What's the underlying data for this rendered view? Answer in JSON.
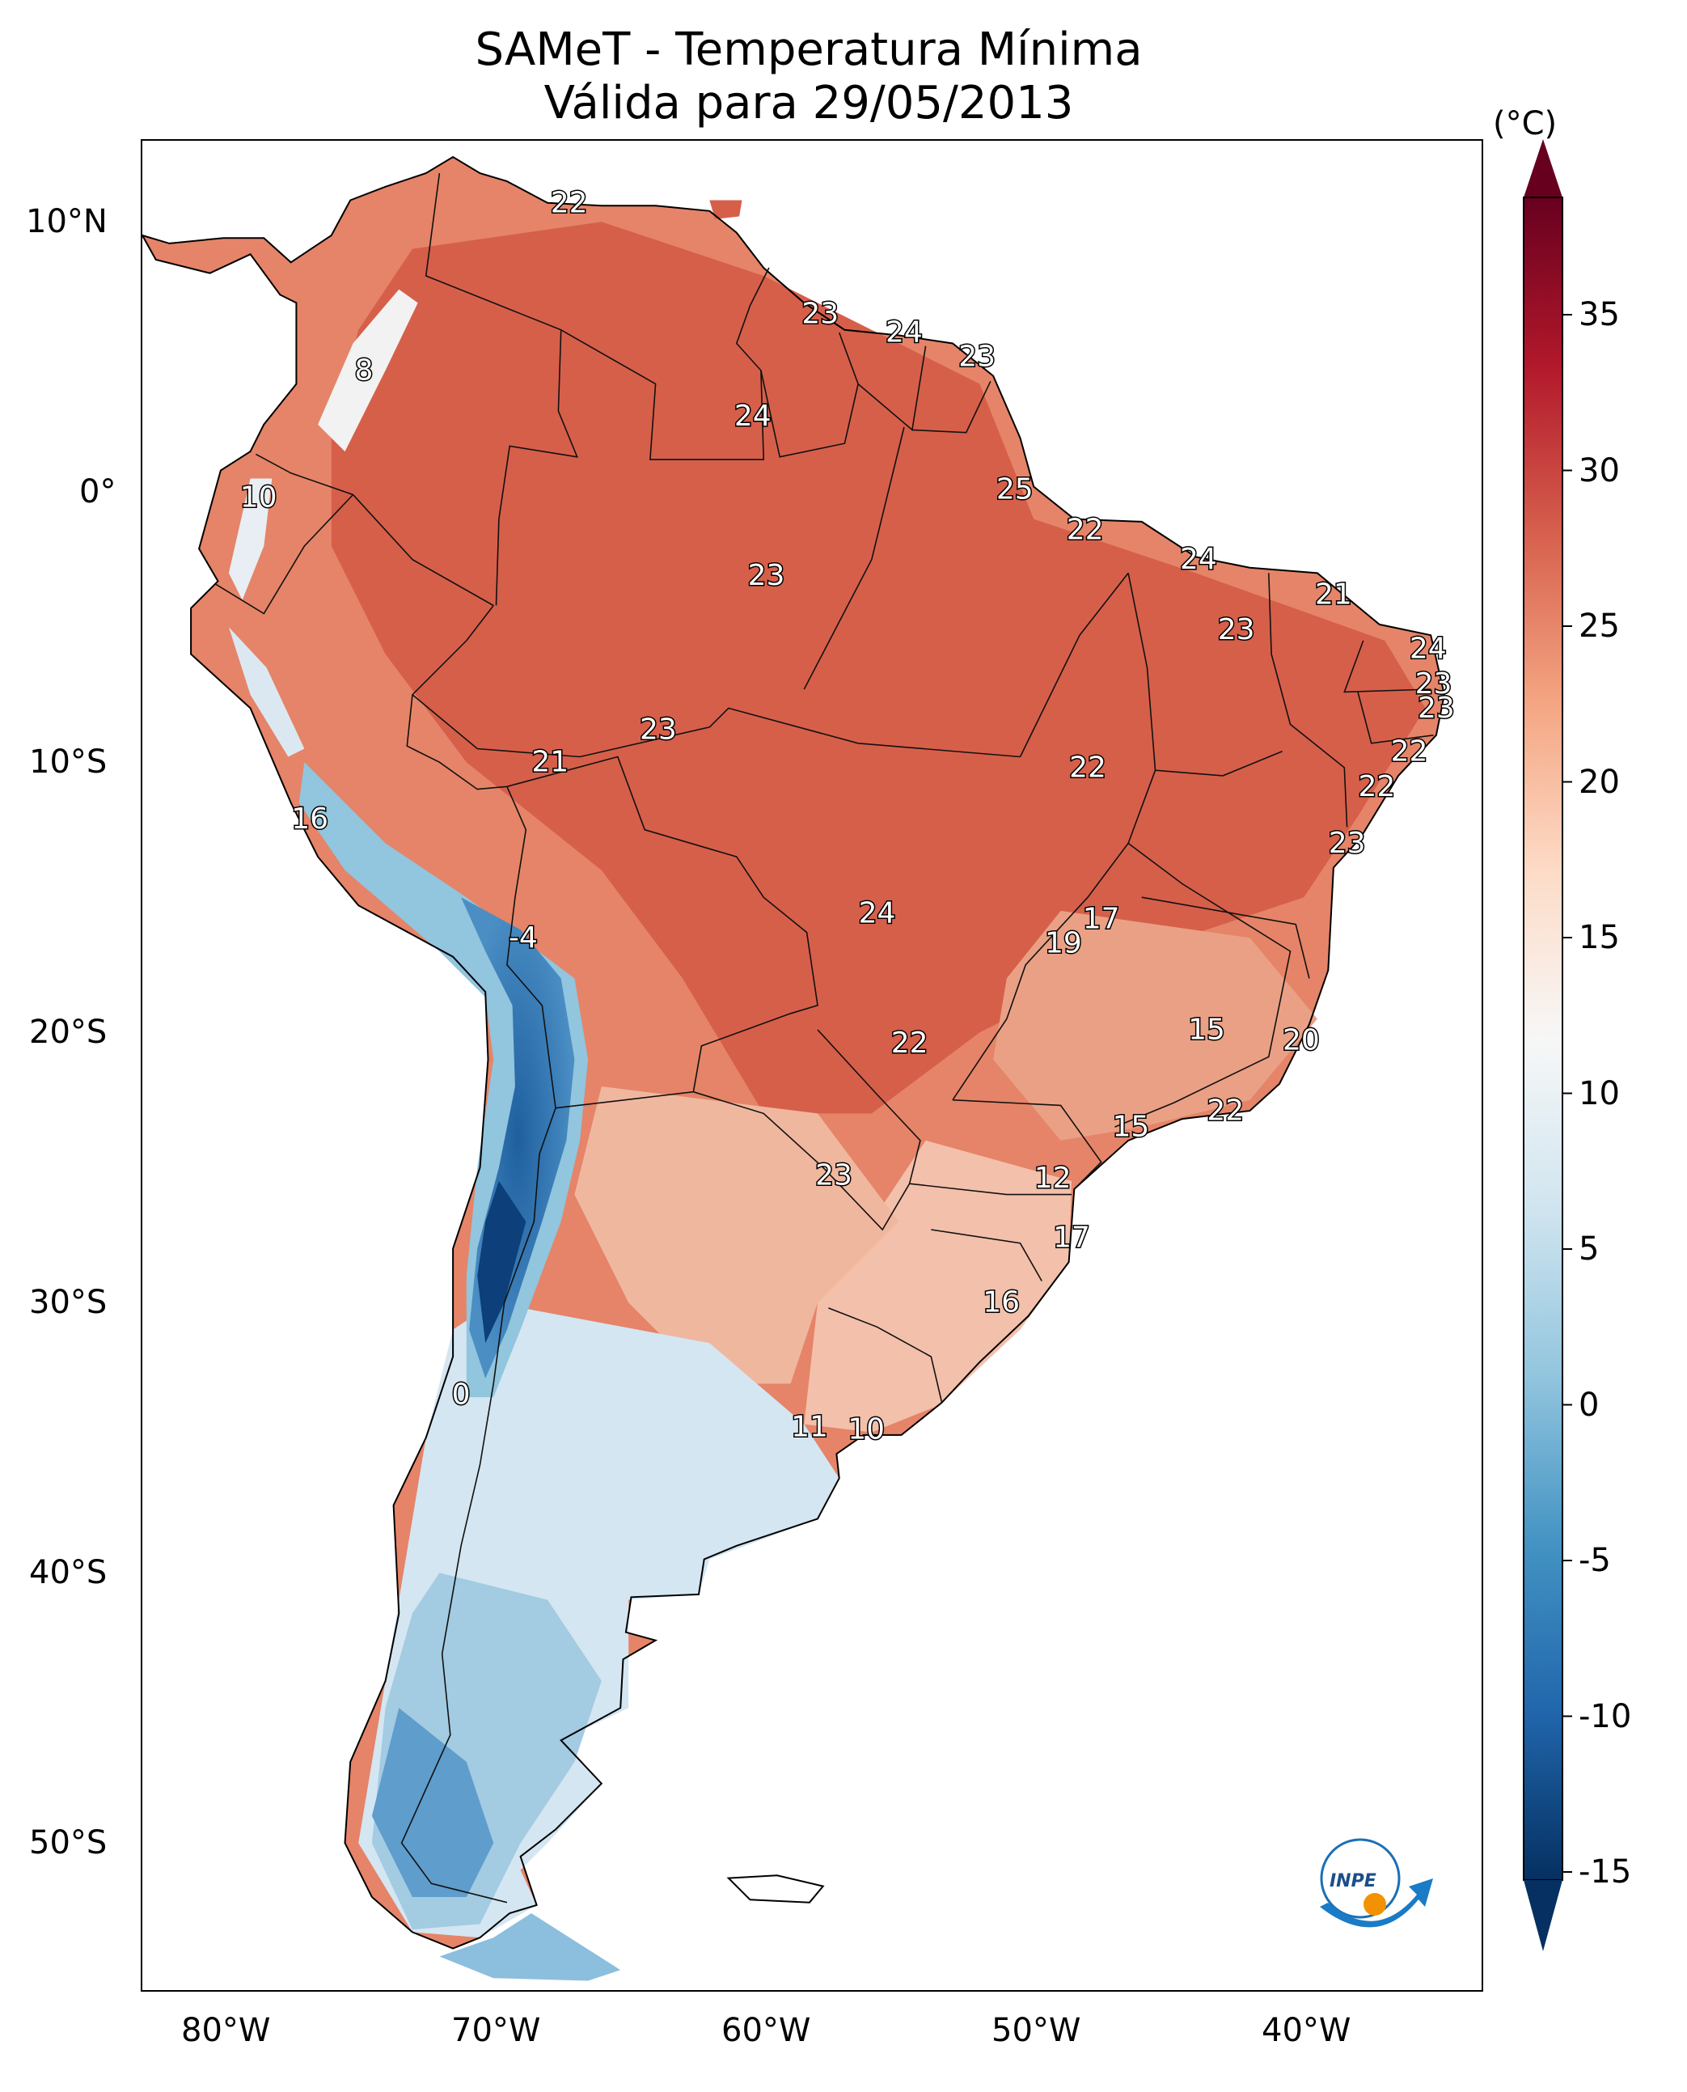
{
  "title": "SAMeT - Temperatura Mínima",
  "subtitle": "Válida para 29/05/2013",
  "colorbar": {
    "unit": "(°C)",
    "ticks": [
      "35",
      "30",
      "25",
      "20",
      "15",
      "10",
      "5",
      "0",
      "-5",
      "-10",
      "-15"
    ],
    "min": -15,
    "max": 35,
    "colors": [
      "#053061",
      "#2166ac",
      "#4393c3",
      "#92c5de",
      "#d1e5f0",
      "#f7f7f7",
      "#fddbc7",
      "#f4a582",
      "#d6604d",
      "#b2182b",
      "#67001f"
    ]
  },
  "axes": {
    "lon_labels": [
      "80°W",
      "70°W",
      "60°W",
      "50°W",
      "40°W"
    ],
    "lat_labels": [
      "10°N",
      "0°",
      "10°S",
      "20°S",
      "30°S",
      "40°S",
      "50°S"
    ]
  },
  "station_labels": [
    {
      "text": "22",
      "lon": -67.2,
      "lat": 10.7
    },
    {
      "text": "23",
      "lon": -57.9,
      "lat": 6.6
    },
    {
      "text": "24",
      "lon": -54.8,
      "lat": 5.9
    },
    {
      "text": "23",
      "lon": -52.1,
      "lat": 5.0
    },
    {
      "text": "8",
      "lon": -74.8,
      "lat": 4.5
    },
    {
      "text": "24",
      "lon": -60.4,
      "lat": 2.8
    },
    {
      "text": "25",
      "lon": -50.7,
      "lat": 0.1
    },
    {
      "text": "10",
      "lon": -78.7,
      "lat": -0.2
    },
    {
      "text": "22",
      "lon": -48.1,
      "lat": -1.4
    },
    {
      "text": "24",
      "lon": -43.9,
      "lat": -2.5
    },
    {
      "text": "23",
      "lon": -59.9,
      "lat": -3.1
    },
    {
      "text": "21",
      "lon": -38.9,
      "lat": -3.8
    },
    {
      "text": "23",
      "lon": -42.5,
      "lat": -5.1
    },
    {
      "text": "24",
      "lon": -35.4,
      "lat": -5.8
    },
    {
      "text": "23",
      "lon": -35.2,
      "lat": -7.1
    },
    {
      "text": "23",
      "lon": -35.1,
      "lat": -8.0
    },
    {
      "text": "23",
      "lon": -63.9,
      "lat": -8.8
    },
    {
      "text": "21",
      "lon": -67.9,
      "lat": -10.0
    },
    {
      "text": "22",
      "lon": -48.0,
      "lat": -10.2
    },
    {
      "text": "22",
      "lon": -36.1,
      "lat": -9.6
    },
    {
      "text": "22",
      "lon": -37.3,
      "lat": -10.9
    },
    {
      "text": "16",
      "lon": -76.8,
      "lat": -12.1
    },
    {
      "text": "23",
      "lon": -38.4,
      "lat": -13.0
    },
    {
      "text": "17",
      "lon": -47.5,
      "lat": -15.8
    },
    {
      "text": "24",
      "lon": -55.8,
      "lat": -15.6
    },
    {
      "text": "19",
      "lon": -48.9,
      "lat": -16.7
    },
    {
      "text": "-4",
      "lon": -68.9,
      "lat": -16.5
    },
    {
      "text": "15",
      "lon": -43.6,
      "lat": -19.9
    },
    {
      "text": "20",
      "lon": -40.1,
      "lat": -20.3
    },
    {
      "text": "22",
      "lon": -54.6,
      "lat": -20.4
    },
    {
      "text": "22",
      "lon": -42.9,
      "lat": -22.9
    },
    {
      "text": "15",
      "lon": -46.4,
      "lat": -23.5
    },
    {
      "text": "23",
      "lon": -57.4,
      "lat": -25.3
    },
    {
      "text": "12",
      "lon": -49.3,
      "lat": -25.4
    },
    {
      "text": "17",
      "lon": -48.6,
      "lat": -27.6
    },
    {
      "text": "16",
      "lon": -51.2,
      "lat": -30.0
    },
    {
      "text": "0",
      "lon": -71.2,
      "lat": -33.4
    },
    {
      "text": "11",
      "lon": -58.3,
      "lat": -34.6
    },
    {
      "text": "10",
      "lon": -56.2,
      "lat": -34.7
    }
  ]
}
